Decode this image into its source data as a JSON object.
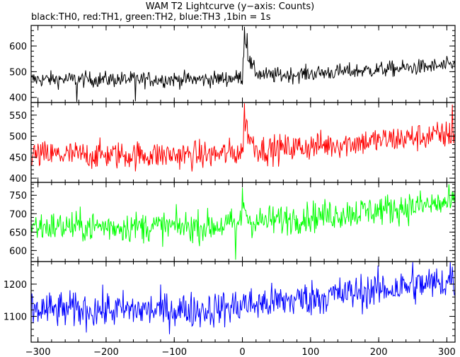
{
  "title": "WAM T2 Lightcurve (y−axis: Counts)",
  "subtitle": "black:TH0, red:TH1, green:TH2, blue:TH3 ,1bin = 1s",
  "chart_data": {
    "type": "line",
    "x_range": [
      -310,
      312
    ],
    "bin_seconds": 1,
    "x_ticks": [
      -300,
      -200,
      -100,
      0,
      100,
      200,
      300
    ],
    "x_tick_labels": [
      "−300",
      "−200",
      "−100",
      "0",
      "100",
      "200",
      "300"
    ],
    "grid": false,
    "panels": [
      {
        "name": "TH0",
        "color": "#000000",
        "ylim": [
          380,
          680
        ],
        "y_ticks": [
          400,
          500,
          600
        ],
        "baseline_start": 470,
        "baseline_end": 525,
        "noise_amplitude": 22,
        "burst": {
          "start": 0,
          "peak_time": 3,
          "peak": 640,
          "decay": 8
        },
        "notable_points": [
          {
            "x": 3,
            "y": 675
          },
          {
            "x": 7,
            "y": 650
          },
          {
            "x": -243,
            "y": 383
          },
          {
            "x": -157,
            "y": 385
          }
        ]
      },
      {
        "name": "TH1",
        "color": "#ff0000",
        "ylim": [
          390,
          580
        ],
        "y_ticks": [
          400,
          450,
          500,
          550
        ],
        "baseline_start": 455,
        "baseline_end": 505,
        "noise_amplitude": 24,
        "burst": {
          "start": 0,
          "peak_time": 4,
          "peak": 540,
          "decay": 8
        },
        "notable_points": [
          {
            "x": 3,
            "y": 578
          },
          {
            "x": 308,
            "y": 575
          }
        ]
      },
      {
        "name": "TH2",
        "color": "#00ff00",
        "ylim": [
          570,
          785
        ],
        "y_ticks": [
          600,
          650,
          700,
          750
        ],
        "baseline_start": 665,
        "baseline_end": 730,
        "noise_amplitude": 30,
        "burst": {
          "start": 0,
          "peak_time": 2,
          "peak": 740,
          "decay": 4
        },
        "notable_points": [
          {
            "x": -10,
            "y": 575
          },
          {
            "x": 0,
            "y": 770
          }
        ]
      },
      {
        "name": "TH3",
        "color": "#0000ff",
        "ylim": [
          1020,
          1270
        ],
        "y_ticks": [
          1100,
          1200
        ],
        "baseline_start": 1120,
        "baseline_end": 1210,
        "noise_amplitude": 40,
        "burst": {
          "start": 0,
          "peak_time": 2,
          "peak": 1150,
          "decay": 3
        },
        "notable_points": [
          {
            "x": 250,
            "y": 1268
          },
          {
            "x": 305,
            "y": 1268
          }
        ]
      }
    ]
  }
}
